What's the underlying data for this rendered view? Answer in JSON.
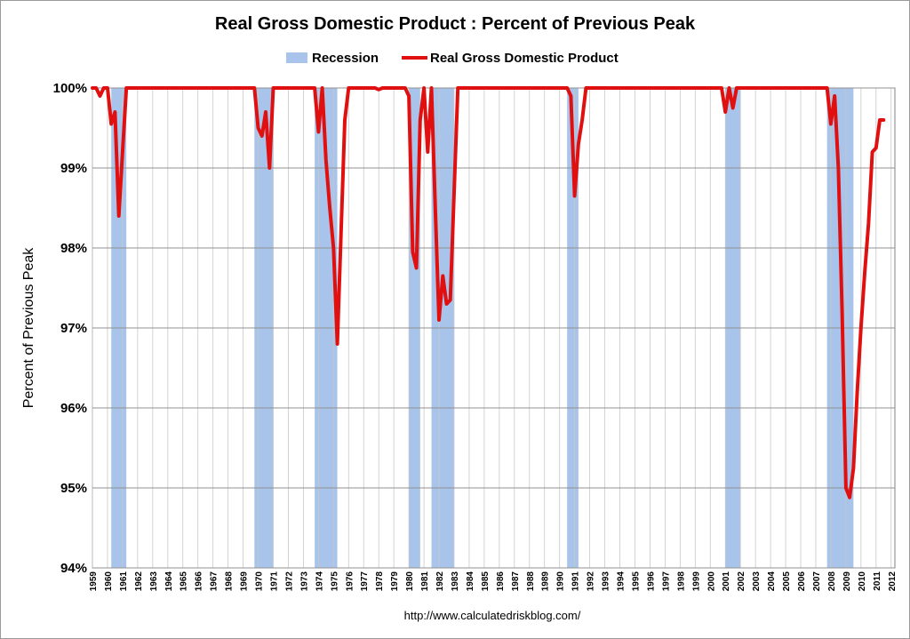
{
  "chart_data": {
    "type": "line",
    "title": "Real Gross Domestic Product : Percent of Previous Peak",
    "ylabel": "Percent of Previous Peak",
    "xlabel": "",
    "source_text": "http://www.calculatedriskblog.com/",
    "ylim": [
      94,
      100
    ],
    "xlim": [
      1959.0,
      2012.25
    ],
    "legend_position": "top-center",
    "ytick_values": [
      94,
      95,
      96,
      97,
      98,
      99,
      100
    ],
    "ytick_labels": [
      "94%",
      "95%",
      "96%",
      "97%",
      "98%",
      "99%",
      "100%"
    ],
    "xtick_labels": [
      "1959",
      "1960",
      "1961",
      "1962",
      "1963",
      "1964",
      "1965",
      "1966",
      "1967",
      "1968",
      "1969",
      "1970",
      "1971",
      "1972",
      "1973",
      "1974",
      "1975",
      "1976",
      "1977",
      "1978",
      "1979",
      "1980",
      "1981",
      "1982",
      "1983",
      "1984",
      "1985",
      "1986",
      "1987",
      "1988",
      "1989",
      "1990",
      "1991",
      "1992",
      "1993",
      "1994",
      "1995",
      "1996",
      "1997",
      "1998",
      "1999",
      "2000",
      "2001",
      "2002",
      "2003",
      "2004",
      "2005",
      "2006",
      "2007",
      "2008",
      "2009",
      "2010",
      "2011",
      "2012"
    ],
    "recessions": [
      {
        "start": 1960.25,
        "end": 1961.25
      },
      {
        "start": 1969.75,
        "end": 1971.0
      },
      {
        "start": 1973.75,
        "end": 1975.25
      },
      {
        "start": 1980.0,
        "end": 1980.75
      },
      {
        "start": 1981.5,
        "end": 1983.0
      },
      {
        "start": 1990.5,
        "end": 1991.25
      },
      {
        "start": 2001.0,
        "end": 2002.0
      },
      {
        "start": 2007.75,
        "end": 2009.5
      }
    ],
    "series": [
      {
        "name": "Real Gross Domestic Product",
        "color": "#e01010",
        "x": [
          1959.0,
          1959.25,
          1959.5,
          1959.75,
          1960.0,
          1960.25,
          1960.5,
          1960.75,
          1961.0,
          1961.25,
          1961.5,
          1969.75,
          1970.0,
          1970.25,
          1970.5,
          1970.75,
          1971.0,
          1971.25,
          1973.75,
          1974.0,
          1974.25,
          1974.5,
          1974.75,
          1975.0,
          1975.25,
          1975.5,
          1975.75,
          1976.0,
          1977.75,
          1978.0,
          1978.25,
          1979.75,
          1980.0,
          1980.25,
          1980.5,
          1980.75,
          1981.0,
          1981.25,
          1981.5,
          1981.75,
          1982.0,
          1982.25,
          1982.5,
          1982.75,
          1983.0,
          1983.25,
          1990.5,
          1990.75,
          1991.0,
          1991.25,
          1991.5,
          1991.75,
          2000.75,
          2001.0,
          2001.25,
          2001.5,
          2001.75,
          2002.0,
          2007.75,
          2008.0,
          2008.25,
          2008.5,
          2008.75,
          2009.0,
          2009.25,
          2009.5,
          2009.75,
          2010.0,
          2010.25,
          2010.5,
          2010.75,
          2011.0,
          2011.25,
          2011.5
        ],
        "values": [
          100.0,
          100.0,
          99.9,
          100.0,
          100.0,
          99.55,
          99.7,
          98.4,
          99.2,
          100.0,
          100.0,
          100.0,
          99.5,
          99.4,
          99.7,
          99.0,
          100.0,
          100.0,
          100.0,
          99.45,
          100.0,
          99.1,
          98.5,
          98.0,
          96.8,
          98.2,
          99.6,
          100.0,
          100.0,
          99.98,
          100.0,
          100.0,
          99.9,
          97.95,
          97.75,
          99.6,
          100.0,
          99.2,
          100.0,
          98.5,
          97.1,
          97.65,
          97.3,
          97.35,
          98.7,
          100.0,
          100.0,
          99.9,
          98.65,
          99.3,
          99.6,
          100.0,
          100.0,
          99.7,
          100.0,
          99.75,
          100.0,
          100.0,
          100.0,
          99.55,
          99.9,
          99.0,
          97.2,
          95.0,
          94.88,
          95.25,
          96.2,
          97.0,
          97.7,
          98.3,
          99.2,
          99.25,
          99.6,
          99.6
        ]
      }
    ],
    "legend": [
      {
        "label": "Recession",
        "kind": "swatch",
        "color": "#a9c4ea"
      },
      {
        "label": "Real Gross Domestic Product",
        "kind": "line",
        "color": "#e01010"
      }
    ]
  }
}
